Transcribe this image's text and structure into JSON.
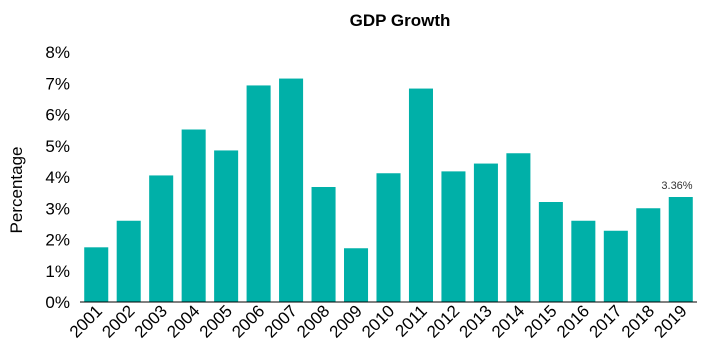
{
  "chart_data": {
    "type": "bar",
    "title": "GDP Growth",
    "xlabel": "",
    "ylabel": "Percentage",
    "ylim": [
      0,
      8
    ],
    "yticks": [
      "0%",
      "1%",
      "2%",
      "3%",
      "4%",
      "5%",
      "6%",
      "7%",
      "8%"
    ],
    "categories": [
      "2001",
      "2002",
      "2003",
      "2004",
      "2005",
      "2006",
      "2007",
      "2008",
      "2009",
      "2010",
      "2011",
      "2012",
      "2013",
      "2014",
      "2015",
      "2016",
      "2017",
      "2018",
      "2019"
    ],
    "values": [
      1.75,
      2.6,
      4.05,
      5.52,
      4.85,
      6.93,
      7.15,
      3.68,
      1.72,
      4.12,
      6.83,
      4.18,
      4.43,
      4.76,
      3.2,
      2.6,
      2.28,
      3.0,
      3.36
    ],
    "data_labels": [
      {
        "category": "2019",
        "text": "3.36%"
      }
    ],
    "grid": false,
    "legend": "none",
    "bar_color": "#00b0a8"
  }
}
